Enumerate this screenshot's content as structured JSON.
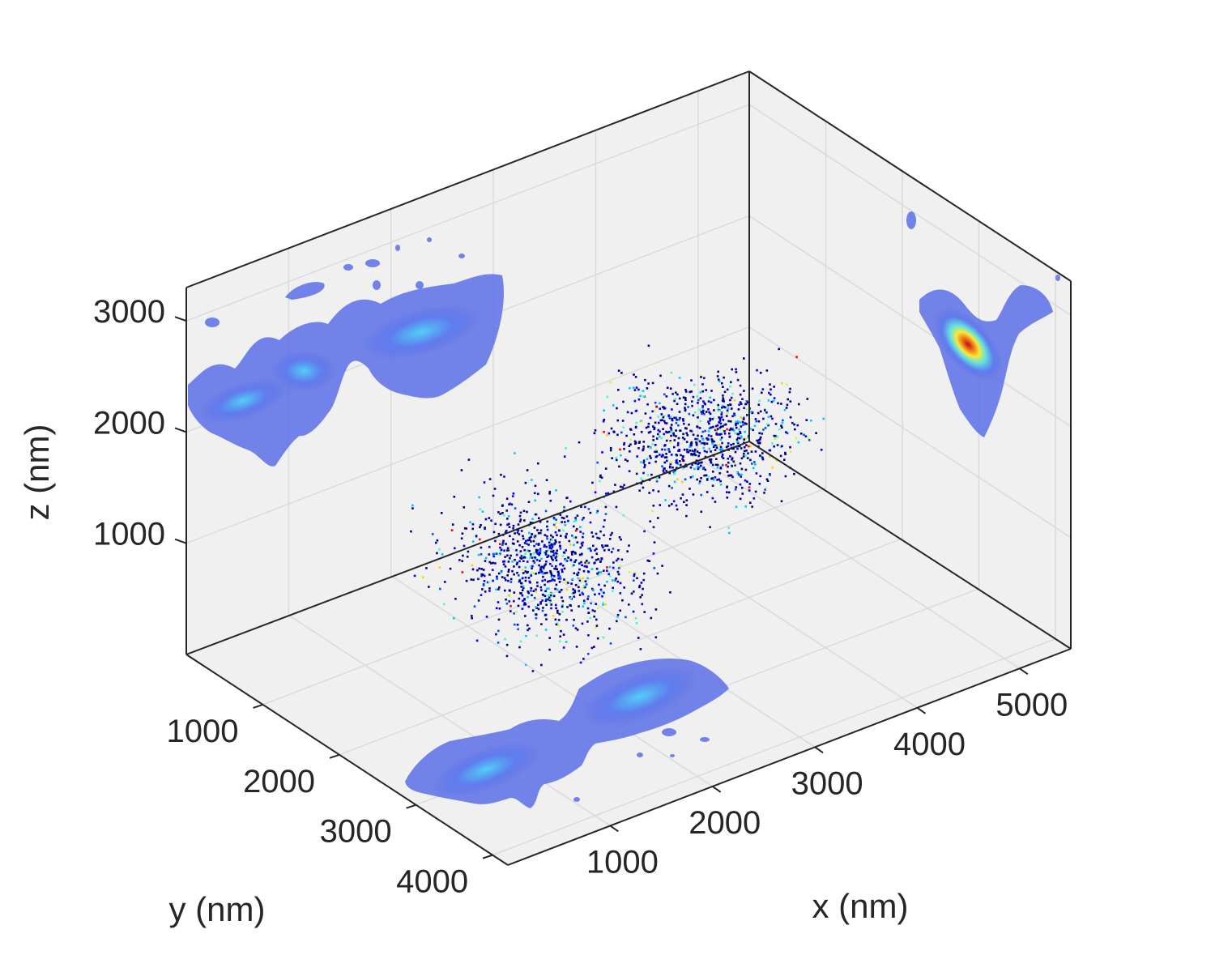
{
  "chart_data": {
    "type": "scatter",
    "projection": "3d",
    "xlabel": "x (nm)",
    "ylabel": "y (nm)",
    "zlabel": "z (nm)",
    "xlim": [
      0,
      5500
    ],
    "ylim": [
      0,
      4200
    ],
    "zlim": [
      0,
      3300
    ],
    "x_ticks": [
      "1000",
      "2000",
      "3000",
      "4000",
      "5000"
    ],
    "y_ticks": [
      "1000",
      "2000",
      "3000",
      "4000"
    ],
    "z_ticks": [
      "1000",
      "2000",
      "3000"
    ],
    "grid": true,
    "colormap": "jet",
    "colors": {
      "axes_background": "#f0f0f0",
      "grid": "#dadada",
      "axis_line": "#262626",
      "low": "#00008f",
      "high": "#ff0000"
    },
    "projections": [
      "xy-plane density",
      "xz-plane density",
      "yz-plane density"
    ],
    "clusters": [
      {
        "x": 1500,
        "y": 2700,
        "z": 1500,
        "sx": 450,
        "sy": 600,
        "sz": 330
      },
      {
        "x": 3400,
        "y": 2200,
        "z": 1750,
        "sx": 550,
        "sy": 500,
        "sz": 250
      }
    ]
  }
}
